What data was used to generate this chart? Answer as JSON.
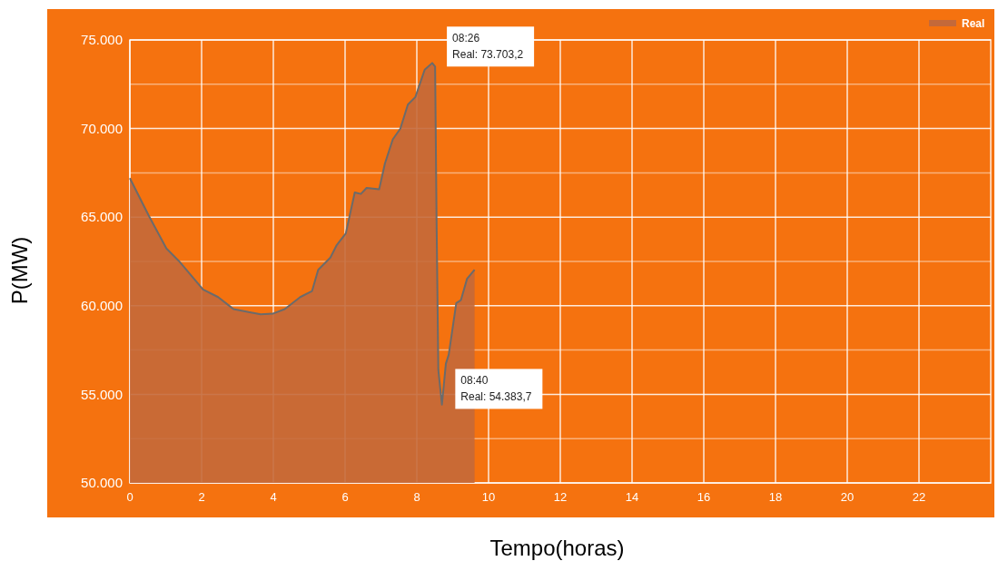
{
  "chart_data": {
    "type": "area",
    "xlabel": "Tempo(horas)",
    "ylabel": "P(MW)",
    "x": [
      0,
      0.52,
      1.02,
      1.36,
      2.04,
      2.46,
      2.89,
      3.31,
      3.65,
      3.98,
      4.32,
      4.75,
      5.08,
      5.25,
      5.59,
      5.76,
      6.02,
      6.27,
      6.44,
      6.6,
      6.95,
      7.11,
      7.33,
      7.54,
      7.75,
      7.96,
      8.22,
      8.43,
      8.51,
      8.55,
      8.6,
      8.7,
      8.81,
      8.89,
      9.1,
      9.23,
      9.4,
      9.61
    ],
    "series": [
      {
        "name": "Real",
        "color": "#c4693a",
        "values": [
          67200,
          65110,
          63230,
          62540,
          60920,
          60490,
          59810,
          59640,
          59520,
          59550,
          59810,
          60490,
          60830,
          62030,
          62720,
          63400,
          64080,
          66390,
          66310,
          66650,
          66570,
          68020,
          69390,
          69990,
          71350,
          71780,
          73320,
          73700,
          73500,
          64940,
          56380,
          54420,
          56730,
          57240,
          60150,
          60320,
          61520,
          62030
        ]
      }
    ],
    "xlim": [
      0,
      24
    ],
    "xticks": [
      0,
      2,
      4,
      6,
      8,
      10,
      12,
      14,
      16,
      18,
      20,
      22
    ],
    "ylim": [
      50000,
      75000
    ],
    "yticks": [
      {
        "value": 50000,
        "label": "50.000"
      },
      {
        "value": 52500,
        "label": null
      },
      {
        "value": 55000,
        "label": "55.000"
      },
      {
        "value": 57500,
        "label": null
      },
      {
        "value": 60000,
        "label": "60.000"
      },
      {
        "value": 62500,
        "label": null
      },
      {
        "value": 65000,
        "label": "65.000"
      },
      {
        "value": 67500,
        "label": null
      },
      {
        "value": 70000,
        "label": "70.000"
      },
      {
        "value": 72500,
        "label": null
      },
      {
        "value": 75000,
        "label": "75.000"
      }
    ],
    "grid": true,
    "legend": "top right",
    "annotations": [
      {
        "text": "08:26\nReal:  73.703,2",
        "x": 8.433,
        "y": 73703.2
      },
      {
        "text": "08:40\nReal:  54.383,7",
        "x": 8.667,
        "y": 54383.7
      }
    ]
  }
}
